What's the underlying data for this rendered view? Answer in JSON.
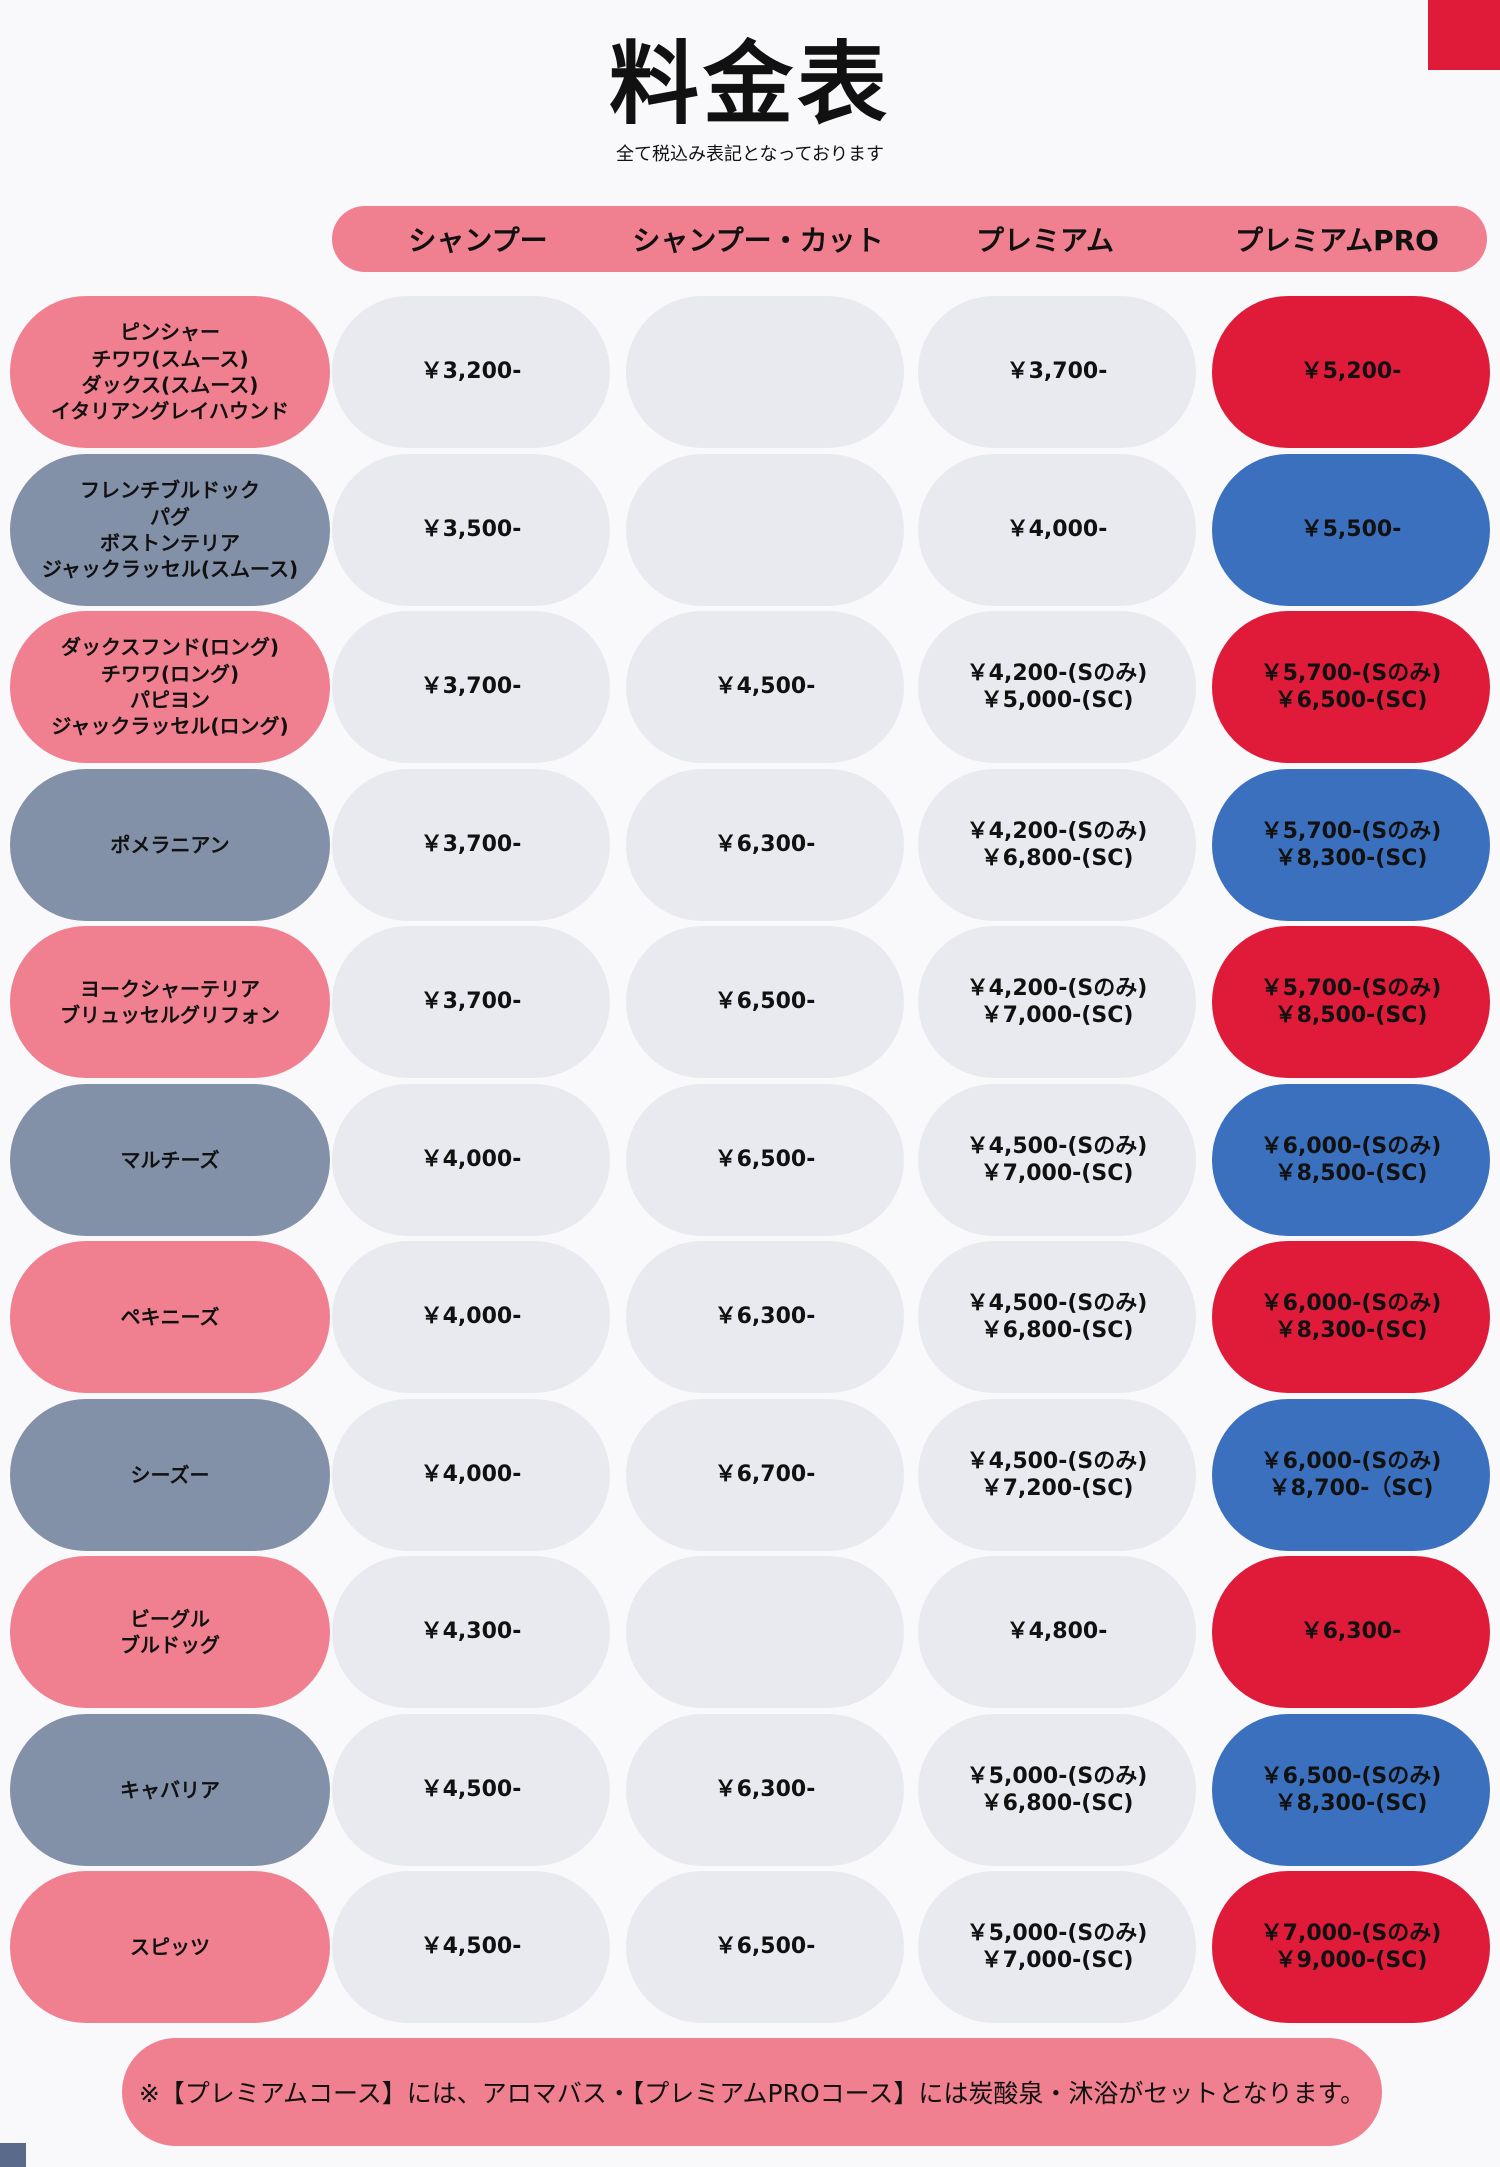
{
  "title": "料金表",
  "subtitle": "全て税込み表記となっております",
  "colors": {
    "pink": "#f07f8f",
    "slate": "#8290a8",
    "grey_cell": "#e8eaef",
    "red": "#e01a39",
    "blue": "#3a70be",
    "corner_red": "#e01a39",
    "corner_slate": "#5a6a8a"
  },
  "columns": [
    "シャンプー",
    "シャンプー・カット",
    "プレミアム",
    "プレミアムPRO"
  ],
  "rows": [
    {
      "breeds": [
        "ピンシャー",
        "チワワ(スムース)",
        "ダックス(スムース)",
        "イタリアングレイハウンド"
      ],
      "shampoo": [
        "￥3,200-"
      ],
      "shampoo_cut": [],
      "premium": [
        "￥3,700-"
      ],
      "premium_pro": [
        "￥5,200-"
      ]
    },
    {
      "breeds": [
        "フレンチブルドック",
        "パグ",
        "ボストンテリア",
        "ジャックラッセル(スムース)"
      ],
      "shampoo": [
        "￥3,500-"
      ],
      "shampoo_cut": [],
      "premium": [
        "￥4,000-"
      ],
      "premium_pro": [
        "￥5,500-"
      ]
    },
    {
      "breeds": [
        "ダックスフンド(ロング)",
        "チワワ(ロング)",
        "パピヨン",
        "ジャックラッセル(ロング)"
      ],
      "shampoo": [
        "￥3,700-"
      ],
      "shampoo_cut": [
        "￥4,500-"
      ],
      "premium": [
        "￥4,200-(Sのみ)",
        "￥5,000-(SC)"
      ],
      "premium_pro": [
        "￥5,700-(Sのみ)",
        "￥6,500-(SC)"
      ]
    },
    {
      "breeds": [
        "ポメラニアン"
      ],
      "shampoo": [
        "￥3,700-"
      ],
      "shampoo_cut": [
        "￥6,300-"
      ],
      "premium": [
        "￥4,200-(Sのみ)",
        "￥6,800-(SC)"
      ],
      "premium_pro": [
        "￥5,700-(Sのみ)",
        "￥8,300-(SC)"
      ]
    },
    {
      "breeds": [
        "ヨークシャーテリア",
        "ブリュッセルグリフォン"
      ],
      "shampoo": [
        "￥3,700-"
      ],
      "shampoo_cut": [
        "￥6,500-"
      ],
      "premium": [
        "￥4,200-(Sのみ)",
        "￥7,000-(SC)"
      ],
      "premium_pro": [
        "￥5,700-(Sのみ)",
        "￥8,500-(SC)"
      ]
    },
    {
      "breeds": [
        "マルチーズ"
      ],
      "shampoo": [
        "￥4,000-"
      ],
      "shampoo_cut": [
        "￥6,500-"
      ],
      "premium": [
        "￥4,500-(Sのみ)",
        "￥7,000-(SC)"
      ],
      "premium_pro": [
        "￥6,000-(Sのみ)",
        "￥8,500-(SC)"
      ]
    },
    {
      "breeds": [
        "ペキニーズ"
      ],
      "shampoo": [
        "￥4,000-"
      ],
      "shampoo_cut": [
        "￥6,300-"
      ],
      "premium": [
        "￥4,500-(Sのみ)",
        "￥6,800-(SC)"
      ],
      "premium_pro": [
        "￥6,000-(Sのみ)",
        "￥8,300-(SC)"
      ]
    },
    {
      "breeds": [
        "シーズー"
      ],
      "shampoo": [
        "￥4,000-"
      ],
      "shampoo_cut": [
        "￥6,700-"
      ],
      "premium": [
        "￥4,500-(Sのみ)",
        "￥7,200-(SC)"
      ],
      "premium_pro": [
        "￥6,000-(Sのみ)",
        "￥8,700-（SC)"
      ]
    },
    {
      "breeds": [
        "ビーグル",
        "ブルドッグ"
      ],
      "shampoo": [
        "￥4,300-"
      ],
      "shampoo_cut": [],
      "premium": [
        "￥4,800-"
      ],
      "premium_pro": [
        "￥6,300-"
      ]
    },
    {
      "breeds": [
        "キャバリア"
      ],
      "shampoo": [
        "￥4,500-"
      ],
      "shampoo_cut": [
        "￥6,300-"
      ],
      "premium": [
        "￥5,000-(Sのみ)",
        "￥6,800-(SC)"
      ],
      "premium_pro": [
        "￥6,500-(Sのみ)",
        "￥8,300-(SC)"
      ]
    },
    {
      "breeds": [
        "スピッツ"
      ],
      "shampoo": [
        "￥4,500-"
      ],
      "shampoo_cut": [
        "￥6,500-"
      ],
      "premium": [
        "￥5,000-(Sのみ)",
        "￥7,000-(SC)"
      ],
      "premium_pro": [
        "￥7,000-(Sのみ)",
        "￥9,000-(SC)"
      ]
    }
  ],
  "footer_note": "※【プレミアムコース】には、アロマバス・【プレミアムPROコース】には炭酸泉・沐浴がセットとなります。"
}
